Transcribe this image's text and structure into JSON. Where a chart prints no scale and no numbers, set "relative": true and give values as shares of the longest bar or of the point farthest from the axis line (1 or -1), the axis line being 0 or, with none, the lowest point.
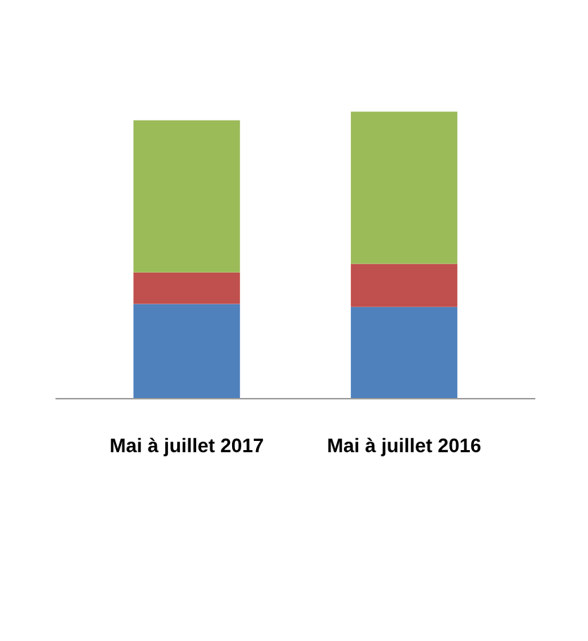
{
  "chart_data": {
    "type": "bar",
    "relative": true,
    "stacked": true,
    "categories": [
      "Mai à juillet 2017",
      "Mai à juillet 2016"
    ],
    "series": [
      {
        "color": "#4f81bd",
        "values": [
          0.33,
          0.32
        ]
      },
      {
        "color": "#c0504d",
        "values": [
          0.11,
          0.15
        ]
      },
      {
        "color": "#9bbb59",
        "values": [
          0.53,
          0.53
        ]
      }
    ]
  }
}
